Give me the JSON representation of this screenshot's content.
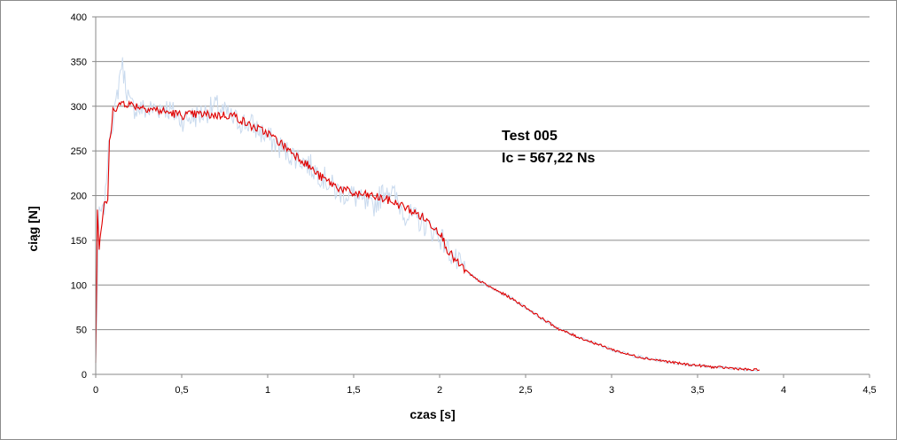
{
  "chart_data": {
    "type": "line",
    "title": "",
    "xlabel": "czas [s]",
    "ylabel": "ciąg [N]",
    "xlim": [
      0,
      4.5
    ],
    "ylim": [
      0,
      400
    ],
    "x_ticks": [
      "0",
      "0,5",
      "1",
      "1,5",
      "2",
      "2,5",
      "3",
      "3,5",
      "4",
      "4,5"
    ],
    "y_ticks": [
      "0",
      "50",
      "100",
      "150",
      "200",
      "250",
      "300",
      "350",
      "400"
    ],
    "grid": "horizontal",
    "legend": "none",
    "annotations": [
      "Test 005",
      "Ic = 567,22 Ns"
    ],
    "series": [
      {
        "role": "filtered",
        "color": "#e00000",
        "x": [
          0.0,
          0.01,
          0.02,
          0.03,
          0.05,
          0.07,
          0.08,
          0.09,
          0.1,
          0.12,
          0.15,
          0.2,
          0.3,
          0.4,
          0.5,
          0.6,
          0.7,
          0.8,
          0.9,
          1.0,
          1.1,
          1.2,
          1.3,
          1.4,
          1.5,
          1.6,
          1.7,
          1.8,
          1.9,
          2.0,
          2.05,
          2.1,
          2.2,
          2.3,
          2.4,
          2.5,
          2.6,
          2.7,
          2.8,
          2.9,
          3.0,
          3.1,
          3.2,
          3.3,
          3.4,
          3.5,
          3.6,
          3.7,
          3.8,
          3.86
        ],
        "y": [
          15,
          185,
          140,
          160,
          190,
          195,
          260,
          270,
          300,
          295,
          305,
          302,
          298,
          294,
          290,
          291,
          290,
          290,
          278,
          270,
          255,
          240,
          222,
          210,
          202,
          200,
          195,
          187,
          176,
          160,
          138,
          125,
          108,
          97,
          87,
          75,
          62,
          50,
          42,
          35,
          28,
          22,
          18,
          15,
          12,
          10,
          8,
          7,
          5,
          5
        ]
      },
      {
        "role": "raw",
        "color": "#c9daee",
        "x": [
          0.0,
          0.02,
          0.05,
          0.08,
          0.1,
          0.13,
          0.15,
          0.2,
          0.3,
          0.4,
          0.5,
          0.6,
          0.7,
          0.8,
          0.9,
          1.0,
          1.1,
          1.2,
          1.3,
          1.4,
          1.5,
          1.6,
          1.7,
          1.8,
          1.9,
          2.0,
          2.1,
          2.2,
          2.3,
          2.4,
          2.5,
          2.6,
          2.7,
          2.8,
          2.9,
          3.0,
          3.1,
          3.2,
          3.3,
          3.4,
          3.5,
          3.6,
          3.7,
          3.8,
          3.86
        ],
        "y": [
          15,
          180,
          185,
          270,
          280,
          320,
          350,
          300,
          295,
          300,
          285,
          290,
          300,
          285,
          280,
          265,
          250,
          240,
          225,
          205,
          200,
          185,
          210,
          180,
          170,
          155,
          125,
          108,
          97,
          87,
          75,
          62,
          50,
          42,
          35,
          28,
          22,
          18,
          15,
          12,
          10,
          8,
          7,
          5,
          5
        ]
      }
    ]
  }
}
